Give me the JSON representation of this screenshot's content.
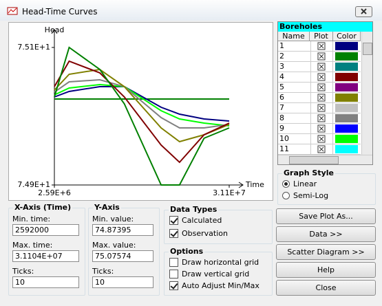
{
  "window": {
    "title": "Head-Time Curves"
  },
  "chart_data": {
    "type": "line",
    "y_label": "Head",
    "x_label": "Time",
    "x": [
      2590000,
      5000000,
      10000000,
      14000000,
      20000000,
      23000000,
      27000000,
      31100000
    ],
    "xlim": [
      2590000,
      31100000
    ],
    "ylim": [
      74.9,
      75.1
    ],
    "xticks": [
      {
        "value": 2590000,
        "label": "2.59E+6"
      },
      {
        "value": 31100000,
        "label": "3.11E+7"
      }
    ],
    "yticks": [
      {
        "value": 74.9,
        "label": "7.49E+1"
      },
      {
        "value": 75.1,
        "label": "7.51E+1"
      }
    ],
    "series": [
      {
        "color": "#008000",
        "values": [
          75.025,
          75.025,
          75.025,
          75.025,
          75.025,
          75.025,
          75.025,
          75.025
        ]
      },
      {
        "color": "#000080",
        "values": [
          75.028,
          75.036,
          75.043,
          75.043,
          75.013,
          75.003,
          74.996,
          74.993
        ]
      },
      {
        "color": "#00ff00",
        "values": [
          75.031,
          75.041,
          75.046,
          75.043,
          75.008,
          74.996,
          74.99,
          74.986
        ]
      },
      {
        "color": "#808080",
        "values": [
          75.035,
          75.05,
          75.053,
          75.043,
          74.998,
          74.983,
          74.983,
          74.988
        ]
      },
      {
        "color": "#808000",
        "values": [
          75.038,
          75.061,
          75.068,
          75.043,
          74.983,
          74.963,
          74.973,
          74.988
        ]
      },
      {
        "color": "#800000",
        "values": [
          75.043,
          75.08,
          75.063,
          75.028,
          74.958,
          74.933,
          74.973,
          74.99
        ]
      },
      {
        "color": "#008000",
        "values": [
          75.028,
          75.1,
          75.068,
          75.018,
          74.9,
          74.9,
          74.968,
          74.983
        ]
      }
    ]
  },
  "boreholes": {
    "title": "Boreholes",
    "columns": [
      "Name",
      "Plot",
      "Color"
    ],
    "rows": [
      {
        "name": "1",
        "color": "#000080"
      },
      {
        "name": "2",
        "color": "#008000"
      },
      {
        "name": "3",
        "color": "#008080"
      },
      {
        "name": "4",
        "color": "#800000"
      },
      {
        "name": "5",
        "color": "#800080"
      },
      {
        "name": "6",
        "color": "#808000"
      },
      {
        "name": "7",
        "color": "#c0c0c0"
      },
      {
        "name": "8",
        "color": "#808080"
      },
      {
        "name": "9",
        "color": "#0000ff"
      },
      {
        "name": "10",
        "color": "#00ff00"
      },
      {
        "name": "11",
        "color": "#00ffff"
      }
    ]
  },
  "graph_style": {
    "title": "Graph Style",
    "selected_index": 0,
    "options": [
      "Linear",
      "Semi-Log"
    ]
  },
  "x_axis": {
    "title": "X-Axis (Time)",
    "fields": [
      {
        "label": "Min. time:",
        "value": "2592000"
      },
      {
        "label": "Max. time:",
        "value": "3.1104E+07"
      },
      {
        "label": "Ticks:",
        "value": "10"
      }
    ]
  },
  "y_axis": {
    "title": "Y-Axis",
    "fields": [
      {
        "label": "Min. value:",
        "value": "74.87395"
      },
      {
        "label": "Max. value:",
        "value": "75.07574"
      },
      {
        "label": "Ticks:",
        "value": "10"
      }
    ]
  },
  "data_types": {
    "title": "Data Types",
    "options": [
      {
        "label": "Calculated",
        "checked": true
      },
      {
        "label": "Observation",
        "checked": true
      }
    ]
  },
  "options": {
    "title": "Options",
    "options": [
      {
        "label": "Draw horizontal grid",
        "checked": false
      },
      {
        "label": "Draw vertical grid",
        "checked": false
      },
      {
        "label": "Auto Adjust Min/Max",
        "checked": true
      }
    ]
  },
  "buttons": [
    "Save Plot As...",
    "Data >>",
    "Scatter Diagram >>",
    "Help",
    "Close"
  ]
}
